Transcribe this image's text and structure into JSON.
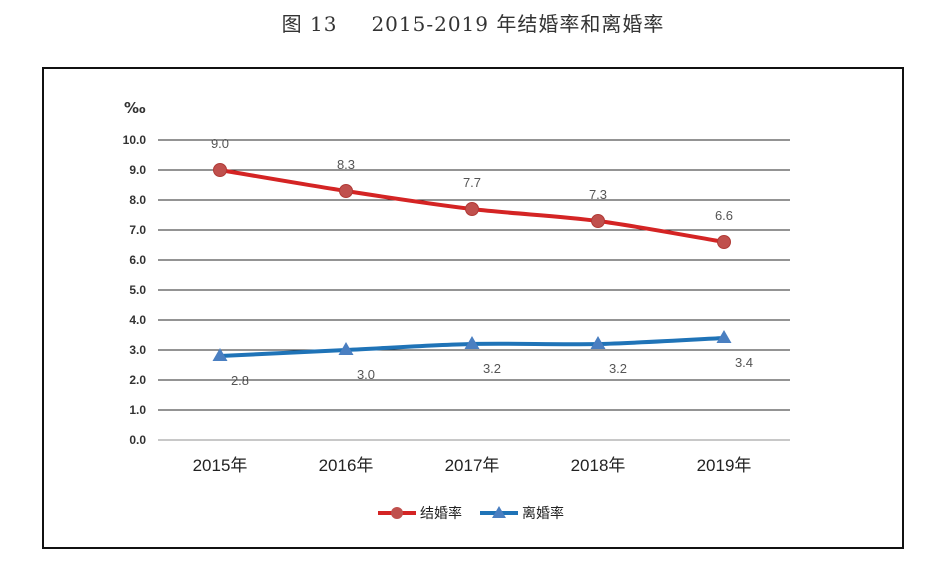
{
  "figure": {
    "number": "图 13",
    "caption": "2015-2019 年结婚率和离婚率"
  },
  "chart_data": {
    "type": "line",
    "title": "2015-2019 年结婚率和离婚率",
    "ylabel": "‰",
    "xlabel": "",
    "categories": [
      "2015年",
      "2016年",
      "2017年",
      "2018年",
      "2019年"
    ],
    "ylim": [
      0,
      10
    ],
    "ytick_labels": [
      "0.0",
      "1.0",
      "2.0",
      "3.0",
      "4.0",
      "5.0",
      "6.0",
      "7.0",
      "8.0",
      "9.0",
      "10.0"
    ],
    "grid": true,
    "legend": "bottom-center",
    "series": [
      {
        "name": "结婚率",
        "values": [
          9.0,
          8.3,
          7.7,
          7.3,
          6.6
        ],
        "labels": [
          "9.0",
          "8.3",
          "7.7",
          "7.3",
          "6.6"
        ],
        "color": "#d42424",
        "marker": "circle",
        "marker_color": "#c0504d"
      },
      {
        "name": "离婚率",
        "values": [
          2.8,
          3.0,
          3.2,
          3.2,
          3.4
        ],
        "labels": [
          "2.8",
          "3.0",
          "3.2",
          "3.2",
          "3.4"
        ],
        "color": "#1f73b7",
        "marker": "triangle",
        "marker_color": "#4a7fc1"
      }
    ]
  }
}
